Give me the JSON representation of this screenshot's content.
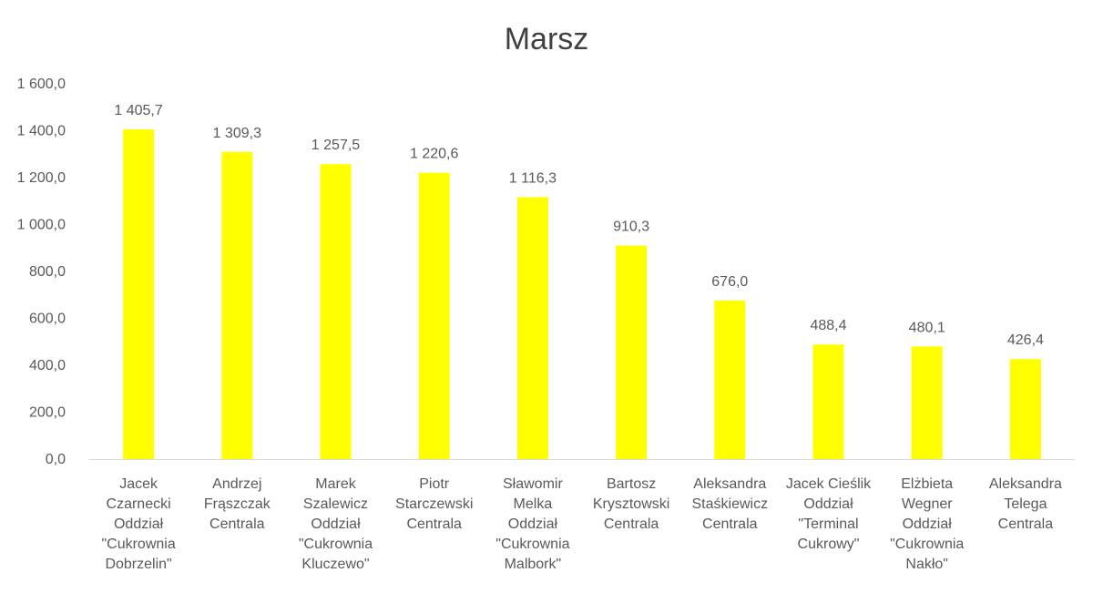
{
  "chart_data": {
    "type": "bar",
    "title": "Marsz",
    "xlabel": "",
    "ylabel": "",
    "ylim": [
      0,
      1600
    ],
    "y_ticks": [
      "0,0",
      "200,0",
      "400,0",
      "600,0",
      "800,0",
      "1 000,0",
      "1 200,0",
      "1 400,0",
      "1 600,0"
    ],
    "grid": false,
    "legend": "none",
    "bar_color": "#FFFF00",
    "categories": [
      [
        "Jacek",
        "Czarnecki",
        "Oddział",
        "\"Cukrownia",
        "Dobrzelin\""
      ],
      [
        "Andrzej",
        "Frąszczak",
        "Centrala"
      ],
      [
        "Marek",
        "Szalewicz",
        "Oddział",
        "\"Cukrownia",
        "Kluczewo\""
      ],
      [
        "Piotr",
        "Starczewski",
        "Centrala"
      ],
      [
        "Sławomir",
        "Melka",
        "Oddział",
        "\"Cukrownia",
        "Malbork\""
      ],
      [
        "Bartosz",
        "Krysztowski",
        "Centrala"
      ],
      [
        "Aleksandra",
        "Staśkiewicz",
        "Centrala"
      ],
      [
        "Jacek Cieślik",
        "Oddział",
        "\"Terminal",
        "Cukrowy\""
      ],
      [
        "Elżbieta",
        "Wegner",
        "Oddział",
        "\"Cukrownia",
        "Nakło\""
      ],
      [
        "Aleksandra",
        "Telega",
        "Centrala"
      ]
    ],
    "values": [
      1405.7,
      1309.3,
      1257.5,
      1220.6,
      1116.3,
      910.3,
      676.0,
      488.4,
      480.1,
      426.4
    ],
    "data_labels": [
      "1 405,7",
      "1 309,3",
      "1 257,5",
      "1 220,6",
      "1 116,3",
      "910,3",
      "676,0",
      "488,4",
      "480,1",
      "426,4"
    ]
  }
}
